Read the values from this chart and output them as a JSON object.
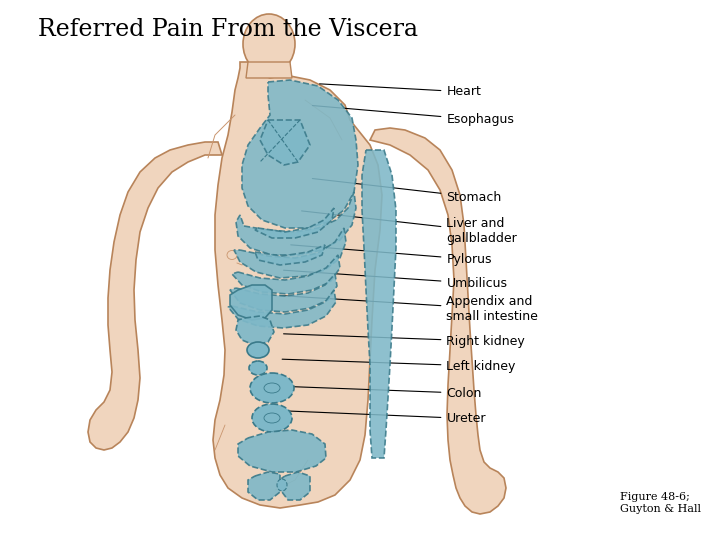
{
  "title": "Referred Pain From the Viscera",
  "title_fontsize": 17,
  "caption": "Figure 48-6;\nGuyton & Hall",
  "caption_fontsize": 8,
  "background_color": "#ffffff",
  "skin_light": "#f0d5be",
  "skin_mid": "#e8c4a0",
  "skin_dark": "#c9956e",
  "skin_line": "#b8845a",
  "pain_fill": "#7eb8c8",
  "pain_edge": "#3a7a8a",
  "labels": [
    {
      "text": "Heart",
      "xt": 0.62,
      "yt": 0.83,
      "xa": 0.44,
      "ya": 0.845
    },
    {
      "text": "Esophagus",
      "xt": 0.62,
      "yt": 0.778,
      "xa": 0.43,
      "ya": 0.805
    },
    {
      "text": "Stomach",
      "xt": 0.62,
      "yt": 0.635,
      "xa": 0.43,
      "ya": 0.67
    },
    {
      "text": "Liver and\ngallbladder",
      "xt": 0.62,
      "yt": 0.572,
      "xa": 0.415,
      "ya": 0.61
    },
    {
      "text": "Pylorus",
      "xt": 0.62,
      "yt": 0.52,
      "xa": 0.4,
      "ya": 0.547
    },
    {
      "text": "Umbilicus",
      "xt": 0.62,
      "yt": 0.475,
      "xa": 0.39,
      "ya": 0.5
    },
    {
      "text": "Appendix and\nsmall intestine",
      "xt": 0.62,
      "yt": 0.428,
      "xa": 0.385,
      "ya": 0.453
    },
    {
      "text": "Right kidney",
      "xt": 0.62,
      "yt": 0.368,
      "xa": 0.39,
      "ya": 0.382
    },
    {
      "text": "Left kidney",
      "xt": 0.62,
      "yt": 0.322,
      "xa": 0.388,
      "ya": 0.335
    },
    {
      "text": "Colon",
      "xt": 0.62,
      "yt": 0.272,
      "xa": 0.385,
      "ya": 0.285
    },
    {
      "text": "Ureter",
      "xt": 0.62,
      "yt": 0.225,
      "xa": 0.38,
      "ya": 0.24
    }
  ]
}
